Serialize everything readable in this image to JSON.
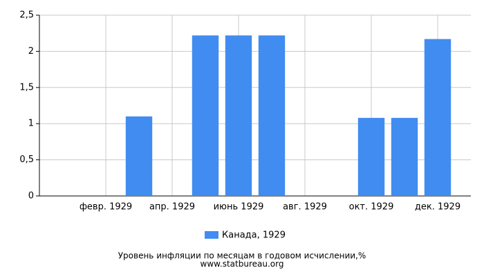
{
  "chart_data": {
    "type": "bar",
    "title": "Уровень инфляции по месяцам в годовом исчислении,%",
    "subtitle": "www.statbureau.org",
    "categories": [
      null,
      "февр. 1929",
      null,
      "апр. 1929",
      null,
      "июнь 1929",
      null,
      "авг. 1929",
      null,
      "окт. 1929",
      null,
      "дек. 1929"
    ],
    "series": [
      {
        "name": "Канада, 1929",
        "color": "#418cf0",
        "values": [
          0,
          0,
          1.1,
          0,
          2.22,
          2.22,
          2.22,
          0,
          0,
          1.08,
          1.08,
          2.17
        ]
      }
    ],
    "ylim": [
      0,
      2.5
    ],
    "yticks": [
      0,
      {
        "value": 0.5,
        "label": "0,5"
      },
      1,
      {
        "value": 1.5,
        "label": "1,5"
      },
      2,
      {
        "value": 2.5,
        "label": "2,5"
      }
    ],
    "grid": true
  }
}
